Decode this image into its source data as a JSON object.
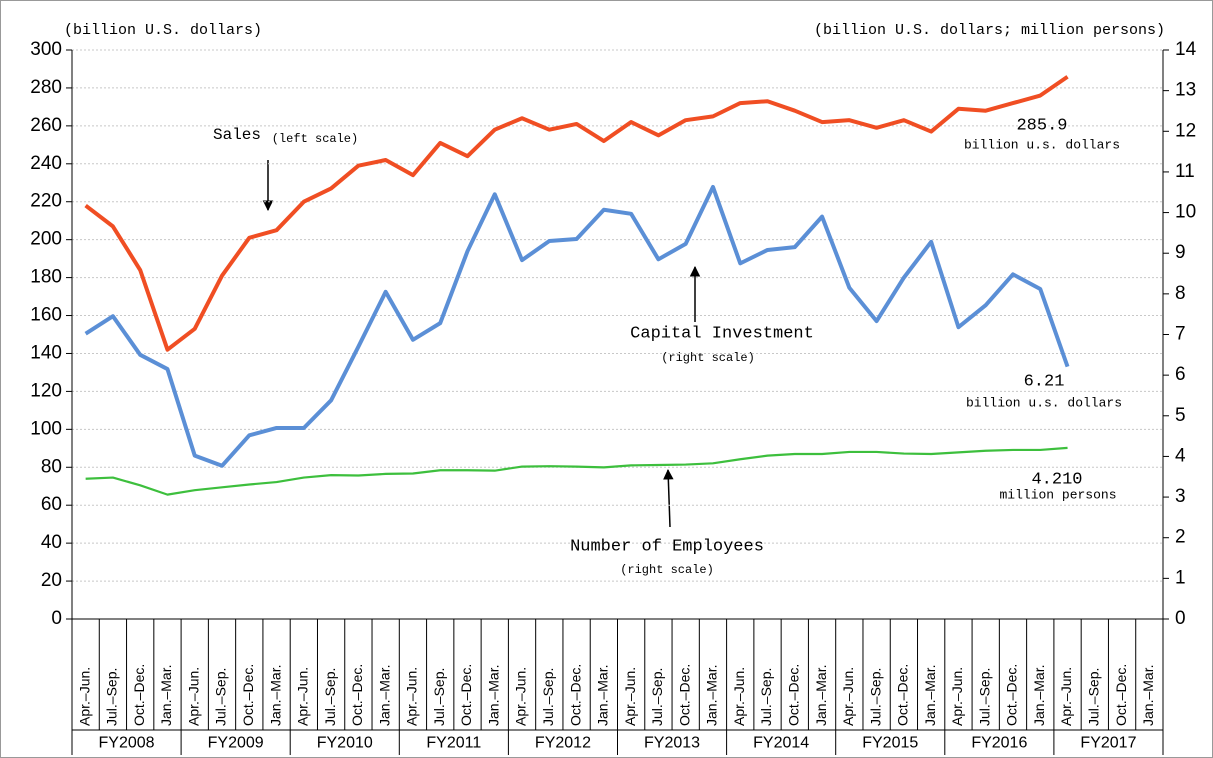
{
  "chart_data": {
    "type": "line",
    "y_label": "(billion U.S. dollars)",
    "y2_label": "(billion U.S. dollars; million persons)",
    "categories": [
      "Apr.–Jun.",
      "Jul.–Sep.",
      "Oct.–Dec.",
      "Jan.–Mar.",
      "Apr.–Jun.",
      "Jul.–Sep.",
      "Oct.–Dec.",
      "Jan.–Mar.",
      "Apr.–Jun.",
      "Jul.–Sep.",
      "Oct.–Dec.",
      "Jan.–Mar.",
      "Apr.–Jun.",
      "Jul.–Sep.",
      "Oct.–Dec.",
      "Jan.–Mar.",
      "Apr.–Jun.",
      "Jul.–Sep.",
      "Oct.–Dec.",
      "Jan.–Mar.",
      "Apr.–Jun.",
      "Jul.–Sep.",
      "Oct.–Dec.",
      "Jan.–Mar.",
      "Apr.–Jun.",
      "Jul.–Sep.",
      "Oct.–Dec.",
      "Jan.–Mar.",
      "Apr.–Jun.",
      "Jul.–Sep.",
      "Oct.–Dec.",
      "Jan.–Mar.",
      "Apr.–Jun.",
      "Jul.–Sep.",
      "Oct.–Dec.",
      "Jan.–Mar.",
      "Apr.–Jun.",
      "Jul.–Sep.",
      "Oct.–Dec.",
      "Jan.–Mar."
    ],
    "fiscal_years": [
      "FY2008",
      "FY2009",
      "FY2010",
      "FY2011",
      "FY2012",
      "FY2013",
      "FY2014",
      "FY2015",
      "FY2016",
      "FY2017"
    ],
    "ylim": [
      0,
      300
    ],
    "yticks": [
      0,
      20,
      40,
      60,
      80,
      100,
      120,
      140,
      160,
      180,
      200,
      220,
      240,
      260,
      280,
      300
    ],
    "y2lim": [
      0,
      14
    ],
    "y2ticks": [
      0,
      1,
      2,
      3,
      4,
      5,
      6,
      7,
      8,
      9,
      10,
      11,
      12,
      13,
      14
    ],
    "grid": true,
    "series": [
      {
        "name": "Sales",
        "note": "(left scale)",
        "color": "#f04e23",
        "axis": "y",
        "values": [
          218,
          207,
          184,
          142,
          153,
          181,
          201,
          205,
          220,
          227,
          239,
          242,
          234,
          251,
          244,
          258,
          264,
          258,
          261,
          252,
          262,
          255,
          263,
          265,
          272,
          273,
          268,
          262,
          263,
          259,
          263,
          257,
          269,
          268,
          272,
          276,
          285.9,
          null,
          null,
          null
        ],
        "value_labels": [
          null,
          null,
          null,
          null,
          null,
          null,
          null,
          null,
          null,
          null,
          null,
          null,
          null,
          null,
          null,
          null,
          null,
          null,
          null,
          null,
          null,
          null,
          null,
          null,
          null,
          null,
          null,
          null,
          null,
          null,
          null,
          null,
          null,
          null,
          null,
          null,
          "285.9",
          null,
          null,
          null
        ],
        "unit": "billion u.s. dollars"
      },
      {
        "name": "Capital Investment",
        "note": "(right scale)",
        "color": "#5b8fd6",
        "axis": "y2",
        "values": [
          7.02,
          7.45,
          6.5,
          6.15,
          4.02,
          3.77,
          4.52,
          4.7,
          4.7,
          5.38,
          6.7,
          8.05,
          6.87,
          7.28,
          9.05,
          10.45,
          8.83,
          9.3,
          9.35,
          10.07,
          9.97,
          8.85,
          9.23,
          10.63,
          8.75,
          9.08,
          9.15,
          9.9,
          8.15,
          7.33,
          8.4,
          9.28,
          7.18,
          7.72,
          8.48,
          8.12,
          6.21,
          null,
          null,
          null
        ],
        "value_labels": [
          null,
          null,
          null,
          null,
          null,
          null,
          null,
          null,
          null,
          null,
          null,
          null,
          null,
          null,
          null,
          null,
          null,
          null,
          null,
          null,
          null,
          null,
          null,
          null,
          null,
          null,
          null,
          null,
          null,
          null,
          null,
          null,
          null,
          null,
          null,
          null,
          "6.21",
          null,
          null,
          null
        ],
        "unit": "billion u.s. dollars"
      },
      {
        "name": "Number of Employees",
        "note": "(right scale)",
        "color": "#3dbf3d",
        "axis": "y2",
        "values": [
          3.45,
          3.48,
          3.29,
          3.06,
          3.17,
          3.24,
          3.31,
          3.37,
          3.48,
          3.54,
          3.53,
          3.57,
          3.58,
          3.66,
          3.66,
          3.65,
          3.75,
          3.76,
          3.75,
          3.73,
          3.78,
          3.79,
          3.8,
          3.83,
          3.93,
          4.02,
          4.06,
          4.06,
          4.11,
          4.11,
          4.07,
          4.06,
          4.1,
          4.14,
          4.16,
          4.16,
          4.21,
          null,
          null,
          null
        ],
        "value_labels": [
          null,
          null,
          null,
          null,
          null,
          null,
          null,
          null,
          null,
          null,
          null,
          null,
          null,
          null,
          null,
          null,
          null,
          null,
          null,
          null,
          null,
          null,
          null,
          null,
          null,
          null,
          null,
          null,
          null,
          null,
          null,
          null,
          null,
          null,
          null,
          null,
          "4.210",
          null,
          null,
          null
        ],
        "unit": "million persons"
      }
    ]
  }
}
